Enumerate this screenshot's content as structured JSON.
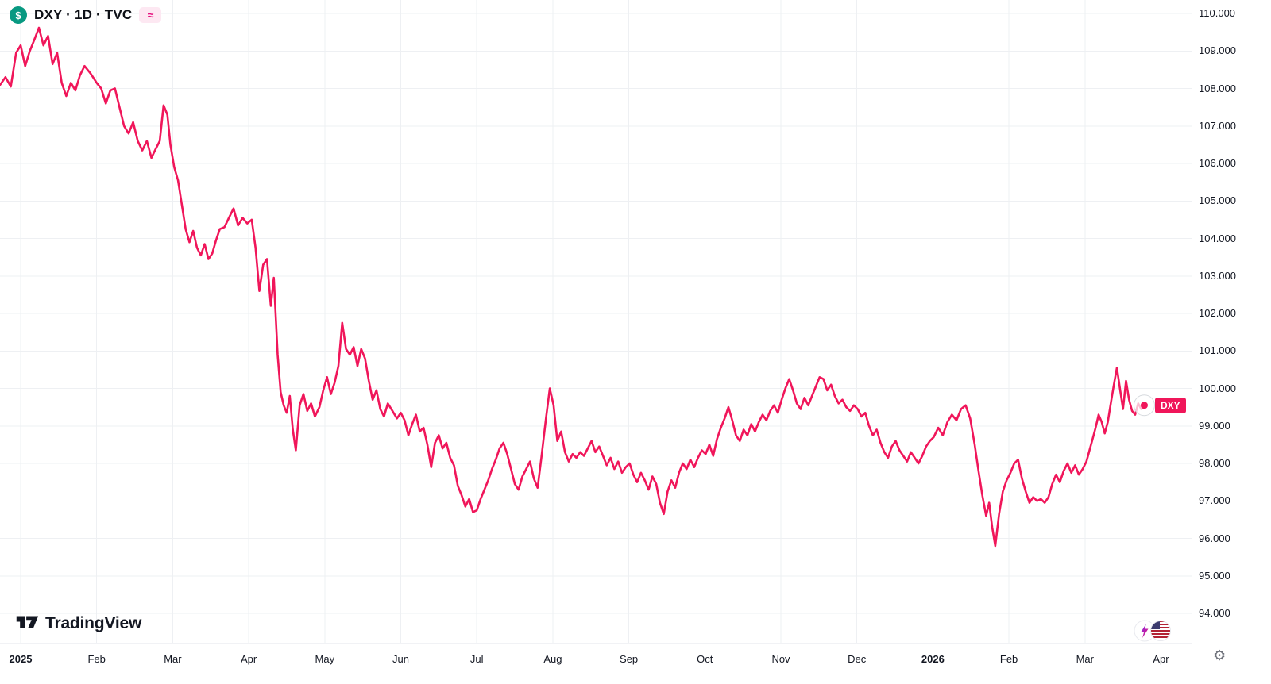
{
  "header": {
    "symbol_icon_text": "$",
    "symbol_title": "DXY · 1D · TVC",
    "approx_badge": "≈"
  },
  "logo": {
    "brand": "TradingView"
  },
  "icons": {
    "gear": "⚙"
  },
  "colors": {
    "line": "#F0165A",
    "symbol_icon_bg": "#089981",
    "approx_badge_bg": "#FDE8F2",
    "approx_badge_text": "#E5117F",
    "axis_text": "#131722",
    "grid": "#EEF0F3"
  },
  "chart_data": {
    "type": "line",
    "symbol": "DXY",
    "interval": "1D",
    "exchange": "TVC",
    "symbol_tag": "DXY",
    "line_color": "#F0165A",
    "legend_position": "none",
    "grid": true,
    "x_unit": "months since 2025-01-01",
    "ylim": [
      93.2,
      110.36
    ],
    "xlim_months": [
      -0.3,
      15.6
    ],
    "price_tick_labels": [
      "110.000",
      "109.000",
      "108.000",
      "107.000",
      "106.000",
      "105.000",
      "104.000",
      "103.000",
      "102.000",
      "101.000",
      "100.000",
      "99.000",
      "98.000",
      "97.000",
      "96.000",
      "95.000",
      "94.000"
    ],
    "time_ticks": [
      {
        "label": "2025",
        "month_index": 0,
        "bold": true
      },
      {
        "label": "Feb",
        "month_index": 1
      },
      {
        "label": "Mar",
        "month_index": 2
      },
      {
        "label": "Apr",
        "month_index": 3
      },
      {
        "label": "May",
        "month_index": 4
      },
      {
        "label": "Jun",
        "month_index": 5
      },
      {
        "label": "Jul",
        "month_index": 6
      },
      {
        "label": "Aug",
        "month_index": 7
      },
      {
        "label": "Sep",
        "month_index": 8
      },
      {
        "label": "Oct",
        "month_index": 9
      },
      {
        "label": "Nov",
        "month_index": 10
      },
      {
        "label": "Dec",
        "month_index": 11
      },
      {
        "label": "2026",
        "month_index": 12,
        "bold": true
      },
      {
        "label": "Feb",
        "month_index": 13
      },
      {
        "label": "Mar",
        "month_index": 14
      },
      {
        "label": "Apr",
        "month_index": 15
      }
    ],
    "points": [
      [
        -0.27,
        108.1
      ],
      [
        -0.2,
        108.3
      ],
      [
        -0.13,
        108.05
      ],
      [
        -0.06,
        108.95
      ],
      [
        0.0,
        109.15
      ],
      [
        0.06,
        108.6
      ],
      [
        0.12,
        109.0
      ],
      [
        0.18,
        109.3
      ],
      [
        0.24,
        109.62
      ],
      [
        0.3,
        109.15
      ],
      [
        0.36,
        109.4
      ],
      [
        0.42,
        108.65
      ],
      [
        0.48,
        108.95
      ],
      [
        0.54,
        108.15
      ],
      [
        0.6,
        107.8
      ],
      [
        0.66,
        108.15
      ],
      [
        0.72,
        107.95
      ],
      [
        0.78,
        108.35
      ],
      [
        0.84,
        108.6
      ],
      [
        0.92,
        108.4
      ],
      [
        1.0,
        108.15
      ],
      [
        1.06,
        108.0
      ],
      [
        1.12,
        107.6
      ],
      [
        1.18,
        107.95
      ],
      [
        1.24,
        108.0
      ],
      [
        1.3,
        107.5
      ],
      [
        1.36,
        107.0
      ],
      [
        1.42,
        106.8
      ],
      [
        1.48,
        107.1
      ],
      [
        1.54,
        106.6
      ],
      [
        1.6,
        106.35
      ],
      [
        1.66,
        106.6
      ],
      [
        1.72,
        106.15
      ],
      [
        1.78,
        106.4
      ],
      [
        1.83,
        106.6
      ],
      [
        1.88,
        107.55
      ],
      [
        1.93,
        107.3
      ],
      [
        1.97,
        106.5
      ],
      [
        2.02,
        105.9
      ],
      [
        2.07,
        105.55
      ],
      [
        2.12,
        104.9
      ],
      [
        2.17,
        104.25
      ],
      [
        2.22,
        103.9
      ],
      [
        2.27,
        104.2
      ],
      [
        2.32,
        103.75
      ],
      [
        2.37,
        103.55
      ],
      [
        2.42,
        103.85
      ],
      [
        2.47,
        103.45
      ],
      [
        2.52,
        103.6
      ],
      [
        2.57,
        103.95
      ],
      [
        2.62,
        104.25
      ],
      [
        2.68,
        104.3
      ],
      [
        2.74,
        104.55
      ],
      [
        2.8,
        104.8
      ],
      [
        2.86,
        104.35
      ],
      [
        2.92,
        104.55
      ],
      [
        2.98,
        104.4
      ],
      [
        3.04,
        104.5
      ],
      [
        3.09,
        103.75
      ],
      [
        3.14,
        102.6
      ],
      [
        3.19,
        103.3
      ],
      [
        3.24,
        103.45
      ],
      [
        3.29,
        102.2
      ],
      [
        3.33,
        102.95
      ],
      [
        3.38,
        100.9
      ],
      [
        3.42,
        99.9
      ],
      [
        3.46,
        99.55
      ],
      [
        3.5,
        99.35
      ],
      [
        3.54,
        99.8
      ],
      [
        3.58,
        98.9
      ],
      [
        3.62,
        98.35
      ],
      [
        3.67,
        99.55
      ],
      [
        3.72,
        99.85
      ],
      [
        3.77,
        99.4
      ],
      [
        3.82,
        99.6
      ],
      [
        3.87,
        99.25
      ],
      [
        3.93,
        99.5
      ],
      [
        3.98,
        99.95
      ],
      [
        4.03,
        100.3
      ],
      [
        4.08,
        99.85
      ],
      [
        4.13,
        100.15
      ],
      [
        4.18,
        100.6
      ],
      [
        4.23,
        101.75
      ],
      [
        4.28,
        101.05
      ],
      [
        4.33,
        100.9
      ],
      [
        4.38,
        101.1
      ],
      [
        4.43,
        100.6
      ],
      [
        4.48,
        101.05
      ],
      [
        4.53,
        100.8
      ],
      [
        4.58,
        100.2
      ],
      [
        4.63,
        99.7
      ],
      [
        4.68,
        99.95
      ],
      [
        4.73,
        99.45
      ],
      [
        4.78,
        99.25
      ],
      [
        4.83,
        99.6
      ],
      [
        4.89,
        99.4
      ],
      [
        4.95,
        99.2
      ],
      [
        5.0,
        99.35
      ],
      [
        5.05,
        99.15
      ],
      [
        5.1,
        98.75
      ],
      [
        5.15,
        99.05
      ],
      [
        5.2,
        99.3
      ],
      [
        5.25,
        98.85
      ],
      [
        5.3,
        98.95
      ],
      [
        5.35,
        98.5
      ],
      [
        5.4,
        97.9
      ],
      [
        5.45,
        98.55
      ],
      [
        5.5,
        98.75
      ],
      [
        5.55,
        98.4
      ],
      [
        5.6,
        98.55
      ],
      [
        5.65,
        98.15
      ],
      [
        5.7,
        97.95
      ],
      [
        5.75,
        97.4
      ],
      [
        5.8,
        97.15
      ],
      [
        5.85,
        96.85
      ],
      [
        5.9,
        97.05
      ],
      [
        5.95,
        96.7
      ],
      [
        6.0,
        96.75
      ],
      [
        6.05,
        97.05
      ],
      [
        6.1,
        97.3
      ],
      [
        6.15,
        97.55
      ],
      [
        6.2,
        97.85
      ],
      [
        6.25,
        98.1
      ],
      [
        6.3,
        98.4
      ],
      [
        6.35,
        98.55
      ],
      [
        6.4,
        98.25
      ],
      [
        6.45,
        97.85
      ],
      [
        6.5,
        97.45
      ],
      [
        6.55,
        97.3
      ],
      [
        6.6,
        97.65
      ],
      [
        6.65,
        97.85
      ],
      [
        6.7,
        98.05
      ],
      [
        6.75,
        97.6
      ],
      [
        6.8,
        97.35
      ],
      [
        6.85,
        98.15
      ],
      [
        6.91,
        99.2
      ],
      [
        6.96,
        100.0
      ],
      [
        7.01,
        99.55
      ],
      [
        7.06,
        98.6
      ],
      [
        7.11,
        98.85
      ],
      [
        7.16,
        98.3
      ],
      [
        7.21,
        98.05
      ],
      [
        7.26,
        98.25
      ],
      [
        7.31,
        98.15
      ],
      [
        7.36,
        98.3
      ],
      [
        7.41,
        98.2
      ],
      [
        7.46,
        98.4
      ],
      [
        7.51,
        98.6
      ],
      [
        7.56,
        98.3
      ],
      [
        7.61,
        98.45
      ],
      [
        7.66,
        98.2
      ],
      [
        7.71,
        97.95
      ],
      [
        7.76,
        98.15
      ],
      [
        7.81,
        97.85
      ],
      [
        7.86,
        98.05
      ],
      [
        7.91,
        97.75
      ],
      [
        7.96,
        97.9
      ],
      [
        8.01,
        98.0
      ],
      [
        8.06,
        97.7
      ],
      [
        8.11,
        97.5
      ],
      [
        8.16,
        97.75
      ],
      [
        8.21,
        97.55
      ],
      [
        8.26,
        97.3
      ],
      [
        8.31,
        97.65
      ],
      [
        8.36,
        97.45
      ],
      [
        8.41,
        96.95
      ],
      [
        8.46,
        96.65
      ],
      [
        8.51,
        97.25
      ],
      [
        8.56,
        97.55
      ],
      [
        8.61,
        97.35
      ],
      [
        8.66,
        97.75
      ],
      [
        8.71,
        98.0
      ],
      [
        8.76,
        97.85
      ],
      [
        8.81,
        98.1
      ],
      [
        8.86,
        97.9
      ],
      [
        8.91,
        98.15
      ],
      [
        8.96,
        98.35
      ],
      [
        9.01,
        98.25
      ],
      [
        9.06,
        98.5
      ],
      [
        9.11,
        98.2
      ],
      [
        9.16,
        98.65
      ],
      [
        9.21,
        98.95
      ],
      [
        9.26,
        99.2
      ],
      [
        9.31,
        99.5
      ],
      [
        9.36,
        99.15
      ],
      [
        9.41,
        98.75
      ],
      [
        9.46,
        98.6
      ],
      [
        9.51,
        98.9
      ],
      [
        9.56,
        98.75
      ],
      [
        9.61,
        99.05
      ],
      [
        9.66,
        98.85
      ],
      [
        9.71,
        99.1
      ],
      [
        9.76,
        99.3
      ],
      [
        9.81,
        99.15
      ],
      [
        9.86,
        99.4
      ],
      [
        9.91,
        99.55
      ],
      [
        9.96,
        99.35
      ],
      [
        10.01,
        99.7
      ],
      [
        10.06,
        100.0
      ],
      [
        10.11,
        100.25
      ],
      [
        10.16,
        99.95
      ],
      [
        10.21,
        99.6
      ],
      [
        10.26,
        99.45
      ],
      [
        10.31,
        99.75
      ],
      [
        10.36,
        99.55
      ],
      [
        10.41,
        99.8
      ],
      [
        10.46,
        100.05
      ],
      [
        10.51,
        100.3
      ],
      [
        10.56,
        100.25
      ],
      [
        10.61,
        99.95
      ],
      [
        10.66,
        100.1
      ],
      [
        10.71,
        99.8
      ],
      [
        10.76,
        99.6
      ],
      [
        10.81,
        99.7
      ],
      [
        10.86,
        99.5
      ],
      [
        10.91,
        99.4
      ],
      [
        10.96,
        99.55
      ],
      [
        11.01,
        99.45
      ],
      [
        11.06,
        99.25
      ],
      [
        11.11,
        99.35
      ],
      [
        11.16,
        99.0
      ],
      [
        11.21,
        98.75
      ],
      [
        11.26,
        98.9
      ],
      [
        11.31,
        98.55
      ],
      [
        11.36,
        98.3
      ],
      [
        11.41,
        98.15
      ],
      [
        11.46,
        98.45
      ],
      [
        11.51,
        98.6
      ],
      [
        11.56,
        98.35
      ],
      [
        11.61,
        98.2
      ],
      [
        11.66,
        98.05
      ],
      [
        11.71,
        98.3
      ],
      [
        11.76,
        98.15
      ],
      [
        11.81,
        98.0
      ],
      [
        11.86,
        98.2
      ],
      [
        11.91,
        98.45
      ],
      [
        11.96,
        98.6
      ],
      [
        12.01,
        98.7
      ],
      [
        12.07,
        98.95
      ],
      [
        12.13,
        98.75
      ],
      [
        12.19,
        99.1
      ],
      [
        12.25,
        99.3
      ],
      [
        12.31,
        99.15
      ],
      [
        12.37,
        99.45
      ],
      [
        12.43,
        99.55
      ],
      [
        12.49,
        99.2
      ],
      [
        12.55,
        98.5
      ],
      [
        12.6,
        97.8
      ],
      [
        12.65,
        97.15
      ],
      [
        12.7,
        96.6
      ],
      [
        12.74,
        96.95
      ],
      [
        12.78,
        96.3
      ],
      [
        12.82,
        95.8
      ],
      [
        12.87,
        96.65
      ],
      [
        12.92,
        97.25
      ],
      [
        12.97,
        97.55
      ],
      [
        13.02,
        97.75
      ],
      [
        13.07,
        98.0
      ],
      [
        13.12,
        98.1
      ],
      [
        13.17,
        97.6
      ],
      [
        13.22,
        97.25
      ],
      [
        13.27,
        96.95
      ],
      [
        13.32,
        97.1
      ],
      [
        13.37,
        97.0
      ],
      [
        13.42,
        97.05
      ],
      [
        13.47,
        96.95
      ],
      [
        13.52,
        97.1
      ],
      [
        13.57,
        97.45
      ],
      [
        13.62,
        97.7
      ],
      [
        13.67,
        97.5
      ],
      [
        13.72,
        97.8
      ],
      [
        13.77,
        98.0
      ],
      [
        13.82,
        97.75
      ],
      [
        13.87,
        97.95
      ],
      [
        13.92,
        97.7
      ],
      [
        13.97,
        97.85
      ],
      [
        14.02,
        98.05
      ],
      [
        14.06,
        98.35
      ],
      [
        14.1,
        98.65
      ],
      [
        14.14,
        98.95
      ],
      [
        14.18,
        99.3
      ],
      [
        14.22,
        99.1
      ],
      [
        14.26,
        98.8
      ],
      [
        14.3,
        99.1
      ],
      [
        14.34,
        99.6
      ],
      [
        14.38,
        100.1
      ],
      [
        14.42,
        100.55
      ],
      [
        14.46,
        100.0
      ],
      [
        14.5,
        99.45
      ],
      [
        14.54,
        100.2
      ],
      [
        14.58,
        99.7
      ],
      [
        14.62,
        99.4
      ],
      [
        14.66,
        99.3
      ],
      [
        14.7,
        99.6
      ],
      [
        14.74,
        99.45
      ],
      [
        14.78,
        99.55
      ]
    ]
  }
}
